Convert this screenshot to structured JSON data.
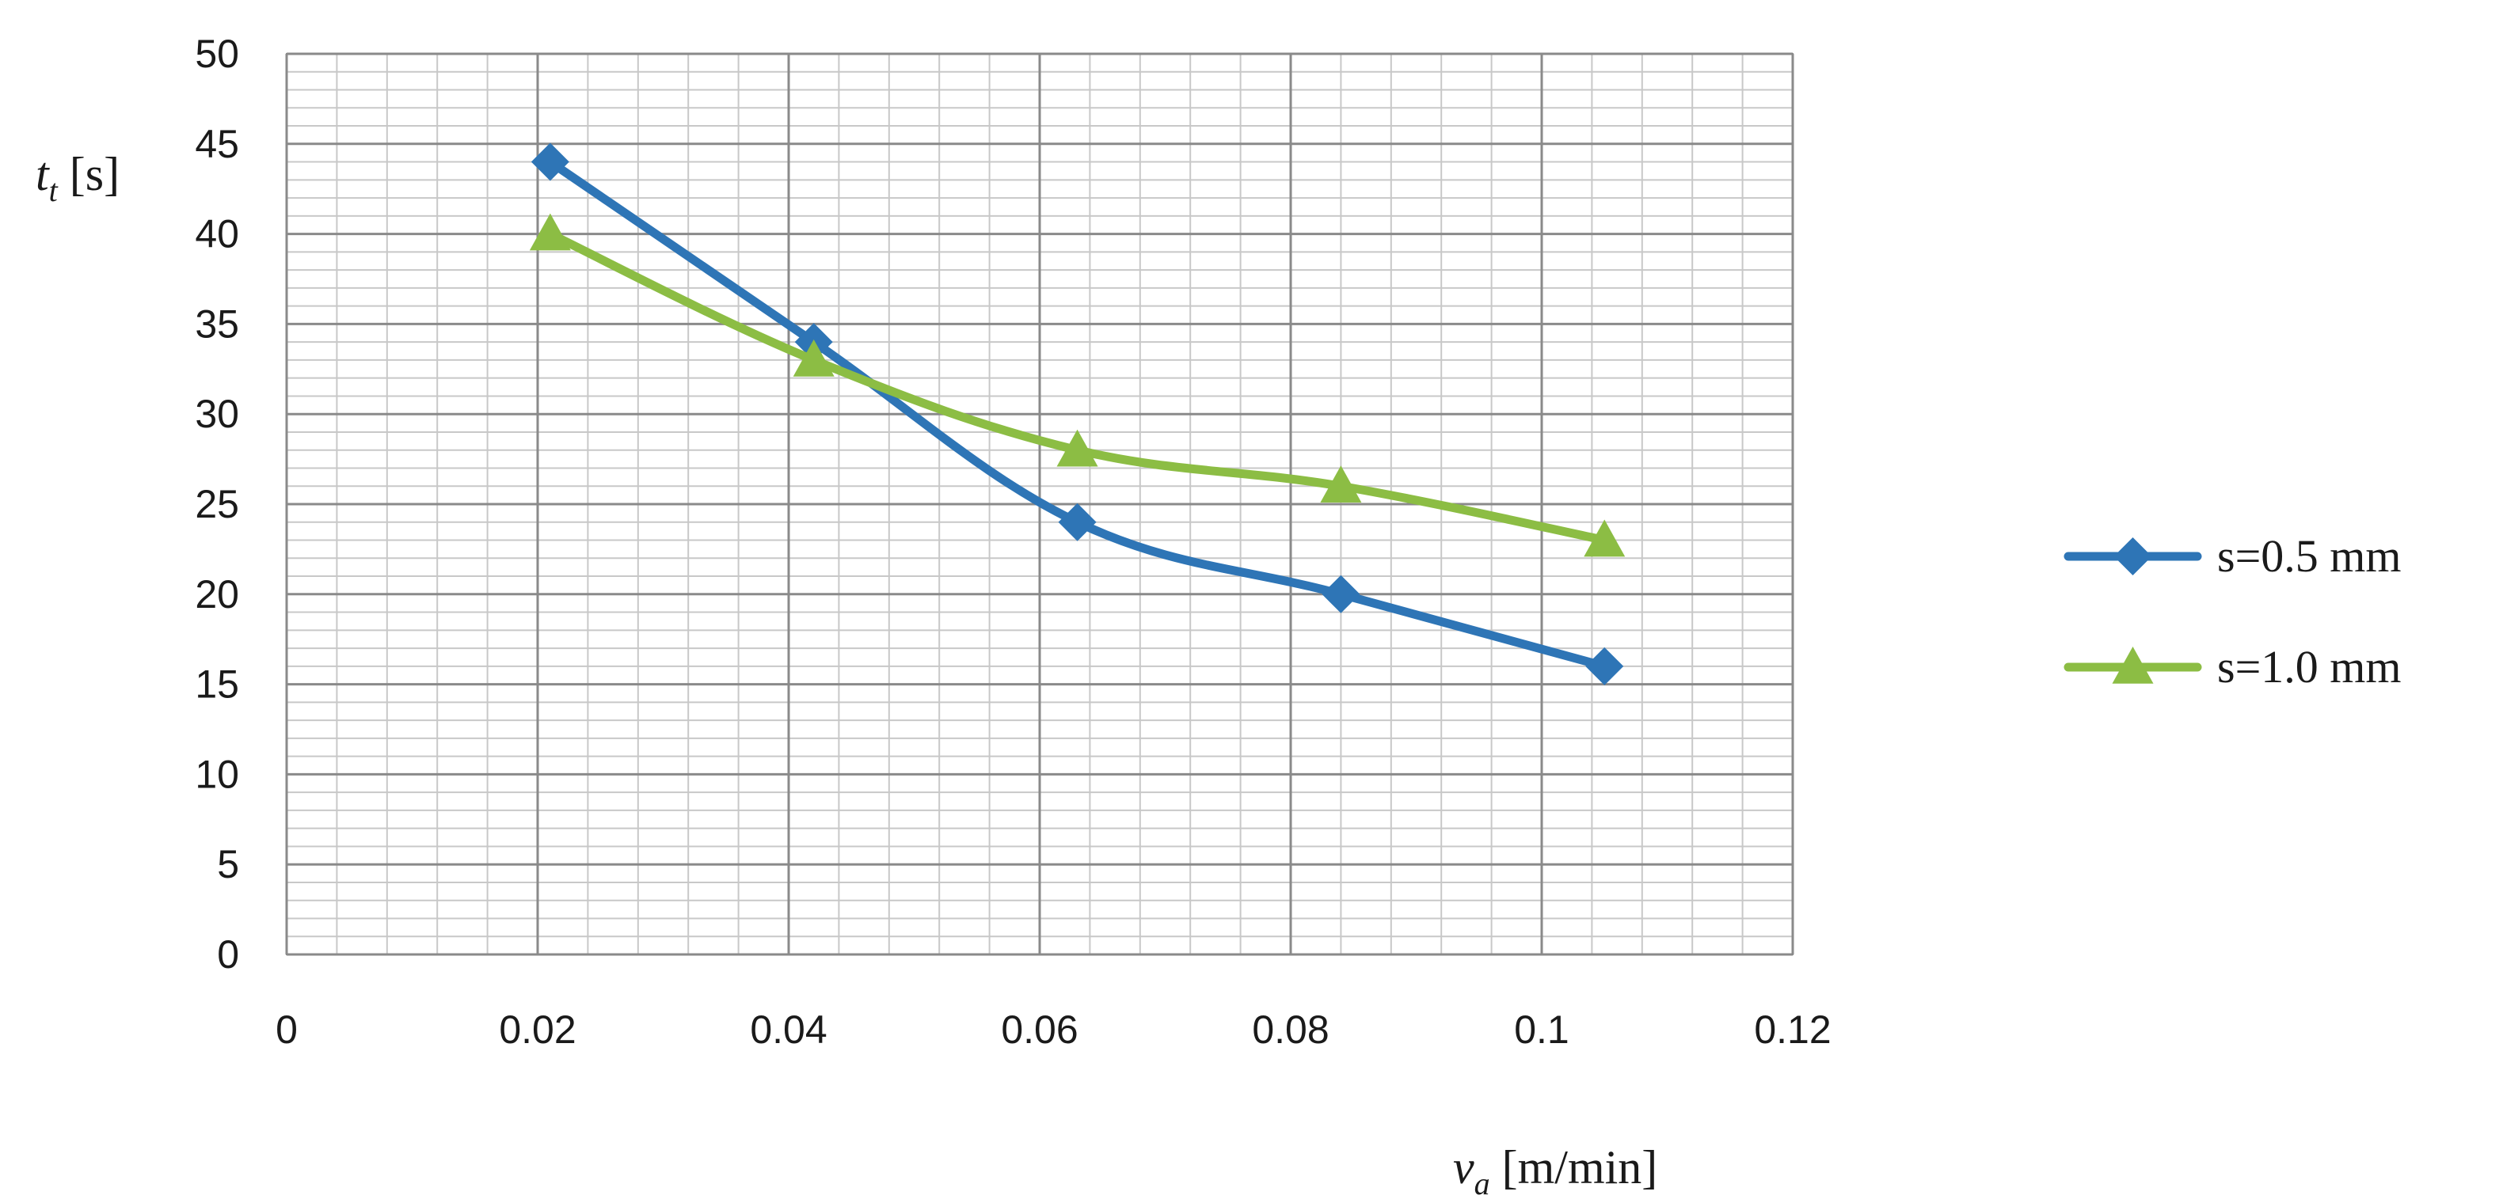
{
  "chart_data": {
    "type": "line",
    "title": "",
    "xlabel": {
      "var": "v",
      "sub": "a",
      "unit": " [m/min]"
    },
    "ylabel": {
      "var": "t",
      "sub": "t",
      "unit": " [s]"
    },
    "xlim": [
      0,
      0.12
    ],
    "ylim": [
      0,
      50
    ],
    "x_major_step": 0.02,
    "x_minor_step": 0.004,
    "y_major_step": 5,
    "y_minor_step": 1,
    "x_tick_labels": [
      "0",
      "0.02",
      "0.04",
      "0.06",
      "0.08",
      "0.1",
      "0.12"
    ],
    "y_tick_labels": [
      "0",
      "5",
      "10",
      "15",
      "20",
      "25",
      "30",
      "35",
      "40",
      "45",
      "50"
    ],
    "grid": true,
    "legend_position": "right",
    "series": [
      {
        "name": "s=0.5 mm",
        "color": "#2e75b6",
        "marker": "diamond",
        "x": [
          0.021,
          0.042,
          0.063,
          0.084,
          0.105
        ],
        "y": [
          44,
          34,
          24,
          20,
          16
        ]
      },
      {
        "name": "s=1.0 mm",
        "color": "#8cbd44",
        "marker": "triangle",
        "x": [
          0.021,
          0.042,
          0.063,
          0.084,
          0.105
        ],
        "y": [
          40,
          33,
          28,
          26,
          23
        ]
      }
    ]
  }
}
